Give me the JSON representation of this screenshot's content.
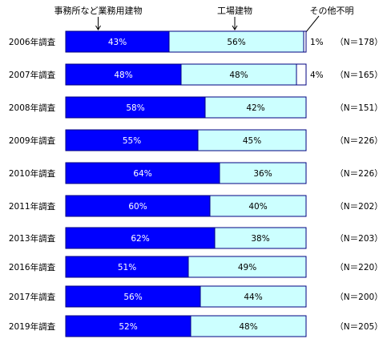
{
  "chart_data": {
    "type": "bar",
    "orientation": "horizontal",
    "stacked": true,
    "percent_scale": [
      0,
      100
    ],
    "categories": [
      "2006年調査",
      "2007年調査",
      "2008年調査",
      "2009年調査",
      "2010年調査",
      "2011年調査",
      "2013年調査",
      "2016年調査",
      "2017年調査",
      "2019年調査"
    ],
    "series": [
      {
        "name": "事務所など業務用建物",
        "values": [
          43,
          48,
          58,
          55,
          64,
          60,
          62,
          51,
          56,
          52
        ],
        "labels": [
          "43%",
          "48%",
          "58%",
          "55%",
          "64%",
          "60%",
          "62%",
          "51%",
          "56%",
          "52%"
        ],
        "color": "#0000ff"
      },
      {
        "name": "工場建物",
        "values": [
          56,
          48,
          42,
          45,
          36,
          40,
          38,
          49,
          44,
          48
        ],
        "labels": [
          "56%",
          "48%",
          "42%",
          "45%",
          "36%",
          "40%",
          "38%",
          "49%",
          "44%",
          "48%"
        ],
        "color": "#ccffff"
      },
      {
        "name": "その他不明",
        "values": [
          1,
          4,
          0,
          0,
          0,
          0,
          0,
          0,
          0,
          0
        ],
        "labels": [
          "1%",
          "4%",
          "",
          "",
          "",
          "",
          "",
          "",
          "",
          ""
        ],
        "color": "#ffffff"
      }
    ],
    "sample_sizes": [
      "（N＝178）",
      "（N＝165）",
      "（N＝151）",
      "（N＝226）",
      "（N＝226）",
      "（N＝202）",
      "（N＝203）",
      "（N＝220）",
      "（N＝200）",
      "（N＝205）"
    ],
    "legend": "top, arrow callouts above first bar",
    "grid": false,
    "colors": {
      "segment_border": "#000080",
      "label_on_dark": "#ffffff",
      "label_on_light": "#000000"
    }
  }
}
